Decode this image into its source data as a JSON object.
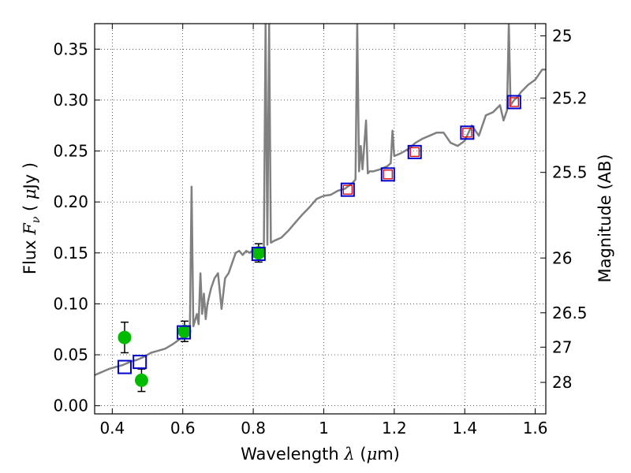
{
  "chart_data": {
    "type": "scatter",
    "xlabel_prefix": "Wavelength ",
    "xlabel_symbol": "λ",
    "xlabel_units_open": " (",
    "xlabel_units_mu": "μ",
    "xlabel_units_close": "m)",
    "ylabel_prefix": "Flux  ",
    "ylabel_symbol": "F",
    "ylabel_sub": "ν",
    "ylabel_units_open": "  ( ",
    "ylabel_units_mu": "μ",
    "ylabel_units_close": "Jy )",
    "y2label": "Magnitude (AB)",
    "xlim": [
      0.35,
      1.63
    ],
    "ylim": [
      -0.008,
      0.375
    ],
    "grid": true,
    "x_ticks": [
      0.4,
      0.6,
      0.8,
      1.0,
      1.2,
      1.4,
      1.6
    ],
    "x_tick_labels": [
      "0.4",
      "0.6",
      "0.8",
      "1",
      "1.2",
      "1.4",
      "1.6"
    ],
    "y_ticks": [
      0.0,
      0.05,
      0.1,
      0.15,
      0.2,
      0.25,
      0.3,
      0.35
    ],
    "y_tick_labels": [
      "0.00",
      "0.05",
      "0.10",
      "0.15",
      "0.20",
      "0.25",
      "0.30",
      "0.35"
    ],
    "mag_ticks": [
      {
        "label": "25",
        "flux": 0.363
      },
      {
        "label": "25.2",
        "flux": 0.302
      },
      {
        "label": "25.5",
        "flux": 0.229
      },
      {
        "label": "26",
        "flux": 0.145
      },
      {
        "label": "26.5",
        "flux": 0.0912
      },
      {
        "label": "27",
        "flux": 0.0575
      },
      {
        "label": "28",
        "flux": 0.0229
      }
    ],
    "series": [
      {
        "kind": "line",
        "color": "#808080",
        "x": [
          0.35,
          0.37,
          0.39,
          0.41,
          0.43,
          0.45,
          0.47,
          0.49,
          0.51,
          0.53,
          0.55,
          0.57,
          0.59,
          0.61,
          0.62,
          0.625,
          0.63,
          0.64,
          0.645,
          0.65,
          0.655,
          0.66,
          0.665,
          0.67,
          0.68,
          0.69,
          0.7,
          0.71,
          0.72,
          0.73,
          0.74,
          0.75,
          0.76,
          0.77,
          0.78,
          0.79,
          0.8,
          0.81,
          0.82,
          0.83,
          0.835,
          0.84,
          0.845,
          0.85,
          0.86,
          0.88,
          0.9,
          0.92,
          0.94,
          0.96,
          0.98,
          1.0,
          1.02,
          1.04,
          1.06,
          1.08,
          1.09,
          1.095,
          1.1,
          1.105,
          1.11,
          1.12,
          1.125,
          1.13,
          1.14,
          1.16,
          1.18,
          1.19,
          1.195,
          1.2,
          1.22,
          1.24,
          1.26,
          1.28,
          1.3,
          1.32,
          1.34,
          1.36,
          1.38,
          1.4,
          1.42,
          1.44,
          1.46,
          1.48,
          1.5,
          1.51,
          1.52,
          1.525,
          1.53,
          1.54,
          1.55,
          1.56,
          1.58,
          1.6,
          1.62,
          1.63
        ],
        "y": [
          0.03,
          0.033,
          0.036,
          0.038,
          0.04,
          0.043,
          0.045,
          0.048,
          0.052,
          0.054,
          0.056,
          0.06,
          0.065,
          0.07,
          0.073,
          0.215,
          0.078,
          0.09,
          0.08,
          0.13,
          0.09,
          0.11,
          0.085,
          0.1,
          0.115,
          0.125,
          0.13,
          0.095,
          0.125,
          0.13,
          0.14,
          0.15,
          0.152,
          0.148,
          0.152,
          0.15,
          0.153,
          0.15,
          0.15,
          0.152,
          0.375,
          0.158,
          0.375,
          0.16,
          0.162,
          0.165,
          0.172,
          0.18,
          0.188,
          0.195,
          0.203,
          0.206,
          0.207,
          0.211,
          0.213,
          0.218,
          0.222,
          0.375,
          0.23,
          0.255,
          0.232,
          0.28,
          0.228,
          0.23,
          0.23,
          0.232,
          0.235,
          0.238,
          0.27,
          0.245,
          0.248,
          0.252,
          0.258,
          0.262,
          0.265,
          0.268,
          0.268,
          0.258,
          0.255,
          0.26,
          0.275,
          0.265,
          0.285,
          0.288,
          0.295,
          0.28,
          0.29,
          0.375,
          0.295,
          0.3,
          0.303,
          0.308,
          0.315,
          0.32,
          0.33,
          0.33
        ]
      },
      {
        "kind": "errorbar",
        "name": "green",
        "color": "#00bb00",
        "x": [
          0.435,
          0.483,
          0.605,
          0.815
        ],
        "y": [
          0.067,
          0.025,
          0.073,
          0.15
        ],
        "yerr": [
          0.015,
          0.011,
          0.01,
          0.009
        ]
      },
      {
        "kind": "square",
        "name": "blue",
        "color": "#0000cc",
        "x": [
          0.435,
          0.478,
          0.603,
          0.815,
          1.068,
          1.182,
          1.258,
          1.407,
          1.54
        ],
        "y": [
          0.038,
          0.043,
          0.072,
          0.149,
          0.212,
          0.227,
          0.249,
          0.268,
          0.298
        ]
      },
      {
        "kind": "square",
        "name": "red",
        "color": "#dd0000",
        "x": [
          1.068,
          1.182,
          1.258,
          1.407,
          1.54
        ],
        "y": [
          0.212,
          0.227,
          0.249,
          0.268,
          0.298
        ]
      }
    ]
  }
}
